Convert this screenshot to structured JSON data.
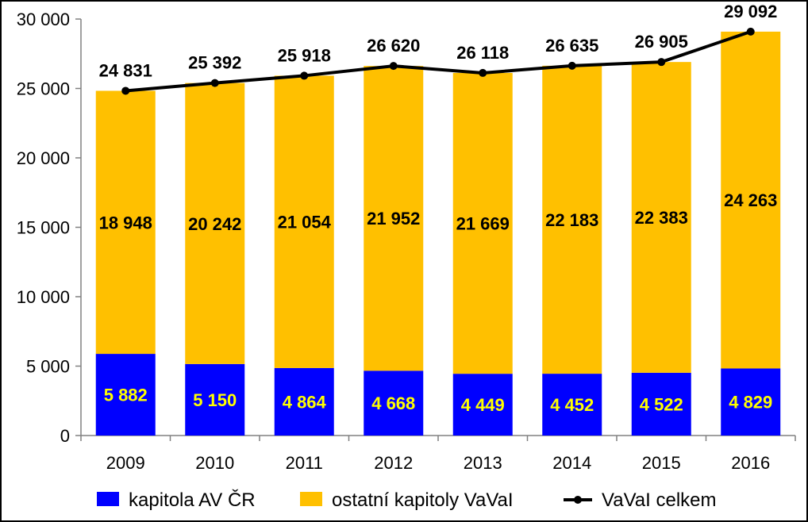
{
  "chart_data": {
    "type": "bar",
    "stacked": true,
    "title": "",
    "xlabel": "",
    "ylabel": "",
    "categories": [
      "2009",
      "2010",
      "2011",
      "2012",
      "2013",
      "2014",
      "2015",
      "2016"
    ],
    "ylim": [
      0,
      30000
    ],
    "yticks": [
      0,
      5000,
      10000,
      15000,
      20000,
      25000,
      30000
    ],
    "ytick_labels": [
      "0",
      "5 000",
      "10 000",
      "15 000",
      "20 000",
      "25 000",
      "30 000"
    ],
    "grid": false,
    "legend_position": "bottom",
    "series": [
      {
        "name": "kapitola AV ČR",
        "kind": "bar",
        "color": "#0000ff",
        "label_color": "#ffff00",
        "values": [
          5882,
          5150,
          4864,
          4668,
          4449,
          4452,
          4522,
          4829
        ],
        "labels": [
          "5 882",
          "5 150",
          "4 864",
          "4 668",
          "4 449",
          "4 452",
          "4 522",
          "4 829"
        ]
      },
      {
        "name": "ostatní kapitoly VaVaI",
        "kind": "bar",
        "color": "#ffc000",
        "label_color": "#000000",
        "values": [
          18948,
          20242,
          21054,
          21952,
          21669,
          22183,
          22383,
          24263
        ],
        "labels": [
          "18 948",
          "20 242",
          "21 054",
          "21 952",
          "21 669",
          "22 183",
          "22 383",
          "24 263"
        ]
      },
      {
        "name": "VaVaI celkem",
        "kind": "line",
        "color": "#000000",
        "values": [
          24831,
          25392,
          25918,
          26620,
          26118,
          26635,
          26905,
          29092
        ],
        "labels": [
          "24 831",
          "25 392",
          "25 918",
          "26 620",
          "26 118",
          "26 635",
          "26 905",
          "29 092"
        ]
      }
    ]
  }
}
